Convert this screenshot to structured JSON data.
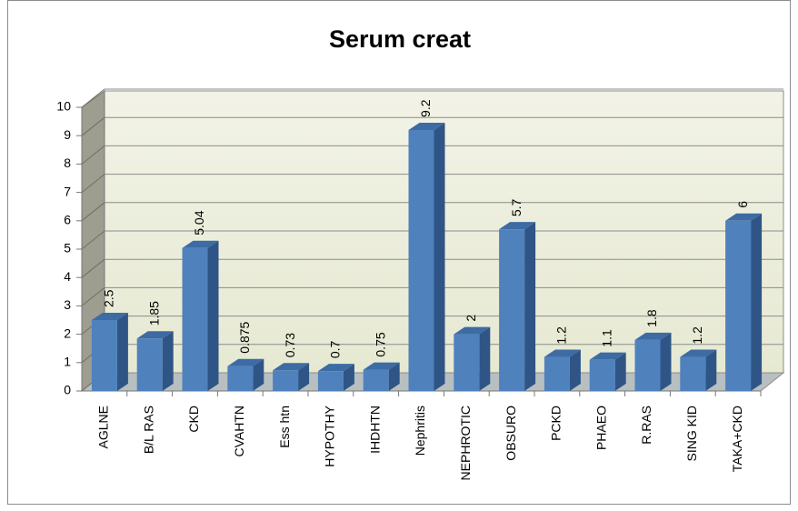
{
  "chart_data": {
    "type": "bar3d",
    "title": "Serum creat",
    "categories": [
      "AGLNE",
      "B/L RAS",
      "CKD",
      "CVAHTN",
      "Ess htn",
      "HYPOTHY",
      "IHDHTN",
      "Nephritis",
      "NEPHROTIC",
      "OBSURO",
      "PCKD",
      "PHAEO",
      "R.RAS",
      "SING KID",
      "TAKA+CKD"
    ],
    "values": [
      2.5,
      1.85,
      5.04,
      0.875,
      0.73,
      0.7,
      0.75,
      9.2,
      2,
      5.7,
      1.2,
      1.1,
      1.8,
      1.2,
      6
    ],
    "color": "#4f81bd",
    "ylim": [
      0,
      10
    ],
    "yticks": [
      0,
      1,
      2,
      3,
      4,
      5,
      6,
      7,
      8,
      9,
      10
    ],
    "grid": true
  }
}
